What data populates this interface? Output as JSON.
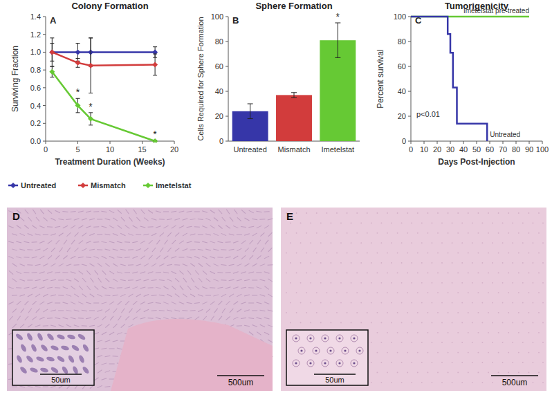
{
  "chart_data": [
    {
      "type": "line",
      "panel": "A",
      "title": "Colony Formation",
      "x_label": "Treatment Duration (Weeks)",
      "y_label": "Surviving Fraction",
      "xlim": [
        0,
        20
      ],
      "xticks": [
        0,
        5,
        10,
        15,
        20
      ],
      "ylim": [
        0,
        1.4
      ],
      "yticks": [
        {
          "value": 0,
          "label": "0.0"
        },
        0.2,
        0.4,
        0.6,
        0.8,
        {
          "value": 1,
          "label": "1.0"
        },
        1.2,
        1.4
      ],
      "grid": false,
      "legend": "bottom",
      "marker": "diamond",
      "series": [
        {
          "name": "Untreated",
          "color": "#3636a8",
          "x": [
            1,
            5,
            7,
            17
          ],
          "values": [
            1.0,
            1.0,
            1.0,
            1.0
          ],
          "errors": [
            0.16,
            0.1,
            0.16,
            0.06
          ],
          "annotations": [
            null,
            null,
            null,
            null
          ]
        },
        {
          "name": "Mismatch",
          "color": "#d23c3c",
          "x": [
            1,
            5,
            7,
            17
          ],
          "values": [
            1.0,
            0.88,
            0.85,
            0.86
          ],
          "errors": [
            0.1,
            0.05,
            0.31,
            0.12
          ],
          "annotations": [
            null,
            null,
            null,
            null
          ]
        },
        {
          "name": "Imetelstat",
          "color": "#66c934",
          "x": [
            1,
            5,
            7,
            17
          ],
          "values": [
            0.78,
            0.4,
            0.25,
            0.0
          ],
          "errors": [
            0.06,
            0.08,
            0.07,
            0.01
          ],
          "annotations": [
            null,
            "*",
            "*",
            "*"
          ]
        }
      ]
    },
    {
      "type": "bar",
      "panel": "B",
      "title": "Sphere Formation",
      "y_label": "Cells Required for Sphere Formation",
      "categories": [
        "Untreated",
        "Mismatch",
        "Imetelstat"
      ],
      "values": [
        24,
        37,
        81
      ],
      "errors": [
        6,
        2,
        14
      ],
      "colors": [
        "#3636a8",
        "#d23c3c",
        "#66c934"
      ],
      "annotations": [
        null,
        null,
        "*"
      ],
      "ylim": [
        0,
        100
      ],
      "yticks": [
        0,
        20,
        40,
        60,
        80,
        100
      ],
      "grid": false
    },
    {
      "type": "step",
      "panel": "C",
      "title": "Tumorigenicity",
      "x_label": "Days Post-Injection",
      "y_label": "Percent survival",
      "xlim": [
        0,
        100
      ],
      "xticks": [
        0,
        10,
        20,
        30,
        40,
        50,
        60,
        70,
        80,
        90,
        100
      ],
      "ylim": [
        0,
        100
      ],
      "yticks": [
        0,
        20,
        40,
        60,
        80,
        100
      ],
      "grid": false,
      "annotations": [
        "p<0.01"
      ],
      "series": [
        {
          "name": "Imetelstat pre-treated",
          "color": "#66c934",
          "x": [
            0,
            90
          ],
          "values": [
            100,
            100
          ]
        },
        {
          "name": "Untreated",
          "color": "#3636a8",
          "x": [
            0,
            28,
            30,
            32,
            35,
            58
          ],
          "values": [
            100,
            86,
            71,
            43,
            14,
            0
          ]
        }
      ]
    }
  ],
  "images": [
    {
      "panel": "D",
      "scale_bar": "500um",
      "inset_scale_bar": "50um"
    },
    {
      "panel": "E",
      "scale_bar": "500um",
      "inset_scale_bar": "50um"
    }
  ]
}
